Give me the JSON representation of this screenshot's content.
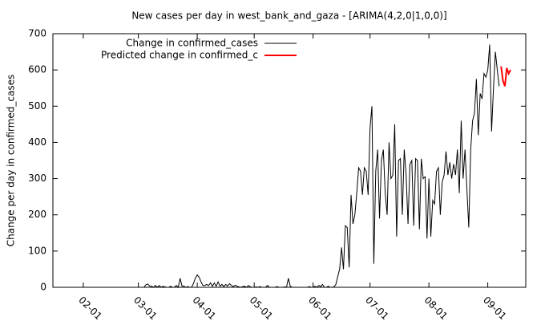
{
  "chart_data": {
    "type": "line",
    "title": "New cases per day in west_bank_and_gaza -  [ARIMA(4,2,0|1,0,0)]",
    "y_label": "Change per day in confirmed_cases",
    "xlim": [
      "01-16",
      "09-21"
    ],
    "xticks": [
      "02-01",
      "03-01",
      "04-01",
      "05-01",
      "06-01",
      "07-01",
      "08-01",
      "09-01"
    ],
    "ylim": [
      0,
      700
    ],
    "yticks": [
      0,
      100,
      200,
      300,
      400,
      500,
      600,
      700
    ],
    "legend": "top-left",
    "series": [
      {
        "name": "Change in confirmed_cases",
        "color": "#000000",
        "x": [
          "01-22",
          "01-23",
          "01-24",
          "01-25",
          "01-26",
          "01-27",
          "01-28",
          "01-29",
          "01-30",
          "01-31",
          "02-01",
          "02-02",
          "02-03",
          "02-04",
          "02-05",
          "02-06",
          "02-07",
          "02-08",
          "02-09",
          "02-10",
          "02-11",
          "02-12",
          "02-13",
          "02-14",
          "02-15",
          "02-16",
          "02-17",
          "02-18",
          "02-19",
          "02-20",
          "02-21",
          "02-22",
          "02-23",
          "02-24",
          "02-25",
          "02-26",
          "02-27",
          "02-28",
          "02-29",
          "03-01",
          "03-02",
          "03-03",
          "03-04",
          "03-05",
          "03-06",
          "03-07",
          "03-08",
          "03-09",
          "03-10",
          "03-11",
          "03-12",
          "03-13",
          "03-14",
          "03-15",
          "03-16",
          "03-17",
          "03-18",
          "03-19",
          "03-20",
          "03-21",
          "03-22",
          "03-23",
          "03-24",
          "03-25",
          "03-26",
          "03-27",
          "03-28",
          "03-29",
          "03-30",
          "03-31",
          "04-01",
          "04-02",
          "04-03",
          "04-04",
          "04-05",
          "04-06",
          "04-07",
          "04-08",
          "04-09",
          "04-10",
          "04-11",
          "04-12",
          "04-13",
          "04-14",
          "04-15",
          "04-16",
          "04-17",
          "04-18",
          "04-19",
          "04-20",
          "04-21",
          "04-22",
          "04-23",
          "04-24",
          "04-25",
          "04-26",
          "04-27",
          "04-28",
          "04-29",
          "04-30",
          "05-01",
          "05-02",
          "05-03",
          "05-04",
          "05-05",
          "05-06",
          "05-07",
          "05-08",
          "05-09",
          "05-10",
          "05-11",
          "05-12",
          "05-13",
          "05-14",
          "05-15",
          "05-16",
          "05-17",
          "05-18",
          "05-19",
          "05-20",
          "05-21",
          "05-22",
          "05-23",
          "05-24",
          "05-25",
          "05-26",
          "05-27",
          "05-28",
          "05-29",
          "05-30",
          "05-31",
          "06-01",
          "06-02",
          "06-03",
          "06-04",
          "06-05",
          "06-06",
          "06-07",
          "06-08",
          "06-09",
          "06-10",
          "06-11",
          "06-12",
          "06-13",
          "06-14",
          "06-15",
          "06-16",
          "06-17",
          "06-18",
          "06-19",
          "06-20",
          "06-21",
          "06-22",
          "06-23",
          "06-24",
          "06-25",
          "06-26",
          "06-27",
          "06-28",
          "06-29",
          "06-30",
          "07-01",
          "07-02",
          "07-03",
          "07-04",
          "07-05",
          "07-06",
          "07-07",
          "07-08",
          "07-09",
          "07-10",
          "07-11",
          "07-12",
          "07-13",
          "07-14",
          "07-15",
          "07-16",
          "07-17",
          "07-18",
          "07-19",
          "07-20",
          "07-21",
          "07-22",
          "07-23",
          "07-24",
          "07-25",
          "07-26",
          "07-27",
          "07-28",
          "07-29",
          "07-30",
          "07-31",
          "08-01",
          "08-02",
          "08-03",
          "08-04",
          "08-05",
          "08-06",
          "08-07",
          "08-08",
          "08-09",
          "08-10",
          "08-11",
          "08-12",
          "08-13",
          "08-14",
          "08-15",
          "08-16",
          "08-17",
          "08-18",
          "08-19",
          "08-20",
          "08-21",
          "08-22",
          "08-23",
          "08-24",
          "08-25",
          "08-26",
          "08-27",
          "08-28",
          "08-29",
          "08-30",
          "08-31",
          "09-01",
          "09-02",
          "09-03",
          "09-04",
          "09-05",
          "09-06",
          "09-07"
        ],
        "values": [
          0,
          0,
          0,
          0,
          0,
          0,
          0,
          0,
          0,
          0,
          0,
          0,
          0,
          0,
          0,
          0,
          0,
          0,
          0,
          0,
          0,
          0,
          0,
          0,
          0,
          0,
          0,
          0,
          0,
          0,
          0,
          0,
          0,
          0,
          0,
          0,
          0,
          0,
          0,
          0,
          0,
          0,
          0,
          7,
          9,
          3,
          3,
          0,
          5,
          0,
          5,
          0,
          3,
          1,
          0,
          0,
          3,
          0,
          0,
          5,
          0,
          25,
          3,
          3,
          0,
          2,
          0,
          0,
          10,
          25,
          34,
          28,
          15,
          5,
          5,
          8,
          5,
          12,
          3,
          12,
          3,
          15,
          3,
          8,
          2,
          8,
          3,
          10,
          5,
          2,
          6,
          3,
          1,
          0,
          2,
          3,
          0,
          5,
          1,
          0,
          0,
          1,
          0,
          2,
          0,
          0,
          0,
          5,
          0,
          0,
          0,
          0,
          2,
          0,
          0,
          0,
          1,
          0,
          25,
          3,
          0,
          0,
          0,
          0,
          0,
          0,
          0,
          0,
          0,
          2,
          0,
          0,
          3,
          0,
          5,
          2,
          8,
          0,
          0,
          3,
          0,
          0,
          1,
          8,
          30,
          50,
          110,
          50,
          170,
          165,
          55,
          255,
          175,
          200,
          260,
          330,
          320,
          255,
          330,
          320,
          255,
          440,
          500,
          65,
          320,
          380,
          190,
          350,
          380,
          260,
          200,
          400,
          300,
          310,
          450,
          140,
          350,
          355,
          200,
          380,
          310,
          175,
          340,
          350,
          170,
          355,
          350,
          160,
          355,
          300,
          305,
          135,
          300,
          140,
          240,
          230,
          320,
          330,
          200,
          290,
          310,
          375,
          310,
          345,
          300,
          340,
          310,
          380,
          260,
          460,
          300,
          380,
          270,
          165,
          380,
          460,
          480,
          575,
          420,
          535,
          520,
          590,
          580,
          600,
          670,
          430,
          550,
          650,
          600,
          555
        ]
      },
      {
        "name": "Predicted change in confirmed_c",
        "color": "#ff0000",
        "x": [
          "09-08",
          "09-09",
          "09-10",
          "09-11",
          "09-12",
          "09-13"
        ],
        "values": [
          610,
          570,
          555,
          605,
          590,
          600
        ]
      }
    ]
  }
}
